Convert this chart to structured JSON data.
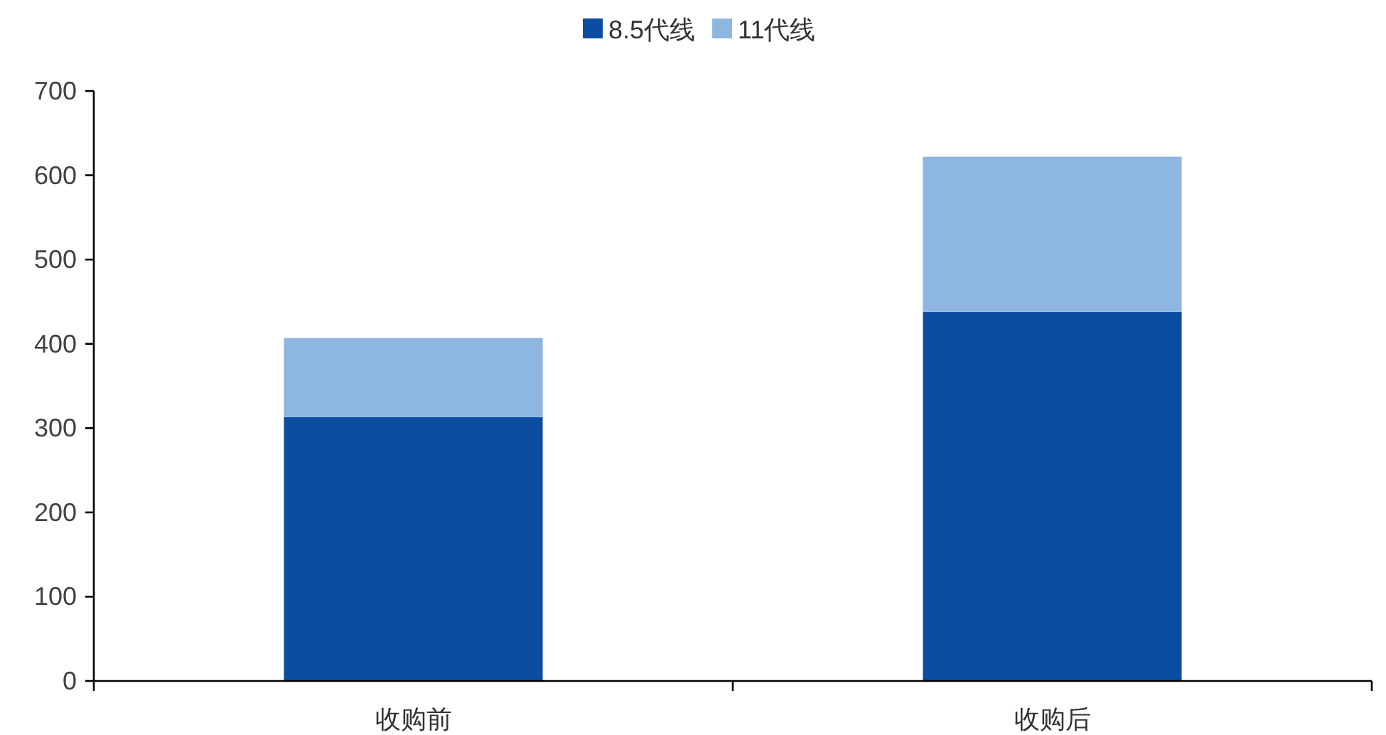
{
  "chart_data": {
    "type": "bar",
    "stacked": true,
    "categories": [
      "收购前",
      "收购后"
    ],
    "series": [
      {
        "name": "8.5代线",
        "color": "#0c4da2",
        "values": [
          313,
          438
        ]
      },
      {
        "name": "11代线",
        "color": "#8db7e0",
        "values": [
          94,
          184
        ]
      }
    ],
    "ylim": [
      0,
      700
    ],
    "yticks": [
      0,
      100,
      200,
      300,
      400,
      500,
      600,
      700
    ],
    "grid": false,
    "legend": "top"
  }
}
